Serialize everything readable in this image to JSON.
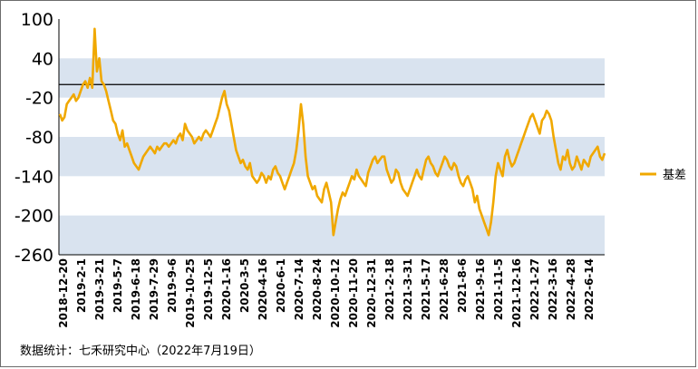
{
  "chart_data": {
    "type": "line",
    "title": "",
    "xlabel": "",
    "ylabel": "",
    "ylim": [
      -260,
      100
    ],
    "y_ticks": [
      100,
      40,
      -20,
      -80,
      -140,
      -200,
      -260
    ],
    "x_tick_labels": [
      "2018-12-20",
      "2019-2-1",
      "2019-3-21",
      "2019-5-7",
      "2019-6-18",
      "2019-7-29",
      "2019-9-6",
      "2019-10-25",
      "2019-12-5",
      "2020-1-16",
      "2020-3-5",
      "2020-4-16",
      "2020-6-1",
      "2020-7-14",
      "2020-8-24",
      "2020-10-12",
      "2020-11-20",
      "2020-12-31",
      "2021-2-18",
      "2021-3-31",
      "2021-5-17",
      "2021-6-28",
      "2021-8-6",
      "2021-9-16",
      "2021-11-5",
      "2021-12-16",
      "2022-1-27",
      "2022-3-16",
      "2022-4-28",
      "2022-6-14"
    ],
    "band_ranges": [
      [
        -20,
        40
      ],
      [
        -140,
        -80
      ],
      [
        -260,
        -200
      ]
    ],
    "reference_line": 0,
    "legend_position": "right",
    "colors": {
      "series": "#f0a800",
      "band": "#d9e3ef",
      "reference": "#000000"
    },
    "series": [
      {
        "name": "基差",
        "values": [
          -45,
          -55,
          -50,
          -30,
          -25,
          -20,
          -15,
          -25,
          -20,
          -10,
          0,
          5,
          -5,
          10,
          -5,
          85,
          20,
          40,
          5,
          0,
          -10,
          -25,
          -40,
          -55,
          -60,
          -75,
          -85,
          -70,
          -95,
          -90,
          -100,
          -110,
          -120,
          -125,
          -130,
          -120,
          -110,
          -105,
          -100,
          -95,
          -100,
          -105,
          -95,
          -100,
          -95,
          -90,
          -90,
          -95,
          -90,
          -85,
          -90,
          -80,
          -75,
          -85,
          -60,
          -70,
          -75,
          -80,
          -90,
          -85,
          -80,
          -85,
          -75,
          -70,
          -75,
          -80,
          -70,
          -60,
          -50,
          -35,
          -20,
          -10,
          -30,
          -40,
          -60,
          -80,
          -100,
          -110,
          -120,
          -115,
          -125,
          -130,
          -120,
          -140,
          -145,
          -150,
          -145,
          -135,
          -140,
          -150,
          -140,
          -145,
          -130,
          -125,
          -135,
          -140,
          -150,
          -160,
          -150,
          -140,
          -130,
          -120,
          -100,
          -70,
          -30,
          -60,
          -110,
          -140,
          -150,
          -160,
          -155,
          -170,
          -175,
          -180,
          -160,
          -150,
          -165,
          -180,
          -230,
          -210,
          -190,
          -175,
          -165,
          -170,
          -160,
          -150,
          -140,
          -145,
          -130,
          -140,
          -145,
          -150,
          -155,
          -135,
          -125,
          -115,
          -110,
          -120,
          -115,
          -110,
          -110,
          -130,
          -140,
          -150,
          -145,
          -130,
          -135,
          -150,
          -160,
          -165,
          -170,
          -160,
          -150,
          -140,
          -130,
          -140,
          -145,
          -130,
          -115,
          -110,
          -120,
          -125,
          -135,
          -140,
          -130,
          -120,
          -110,
          -115,
          -125,
          -130,
          -120,
          -125,
          -140,
          -150,
          -155,
          -145,
          -140,
          -150,
          -160,
          -180,
          -170,
          -190,
          -200,
          -210,
          -220,
          -230,
          -210,
          -180,
          -140,
          -120,
          -130,
          -140,
          -110,
          -100,
          -115,
          -125,
          -120,
          -110,
          -100,
          -90,
          -80,
          -70,
          -60,
          -50,
          -45,
          -55,
          -65,
          -75,
          -55,
          -50,
          -40,
          -45,
          -55,
          -80,
          -100,
          -120,
          -130,
          -110,
          -115,
          -100,
          -120,
          -130,
          -125,
          -110,
          -120,
          -130,
          -115,
          -120,
          -125,
          -110,
          -105,
          -100,
          -95,
          -110,
          -115,
          -105
        ]
      }
    ],
    "source_text": "数据统计：七禾研究中心（2022年7月19日）"
  }
}
